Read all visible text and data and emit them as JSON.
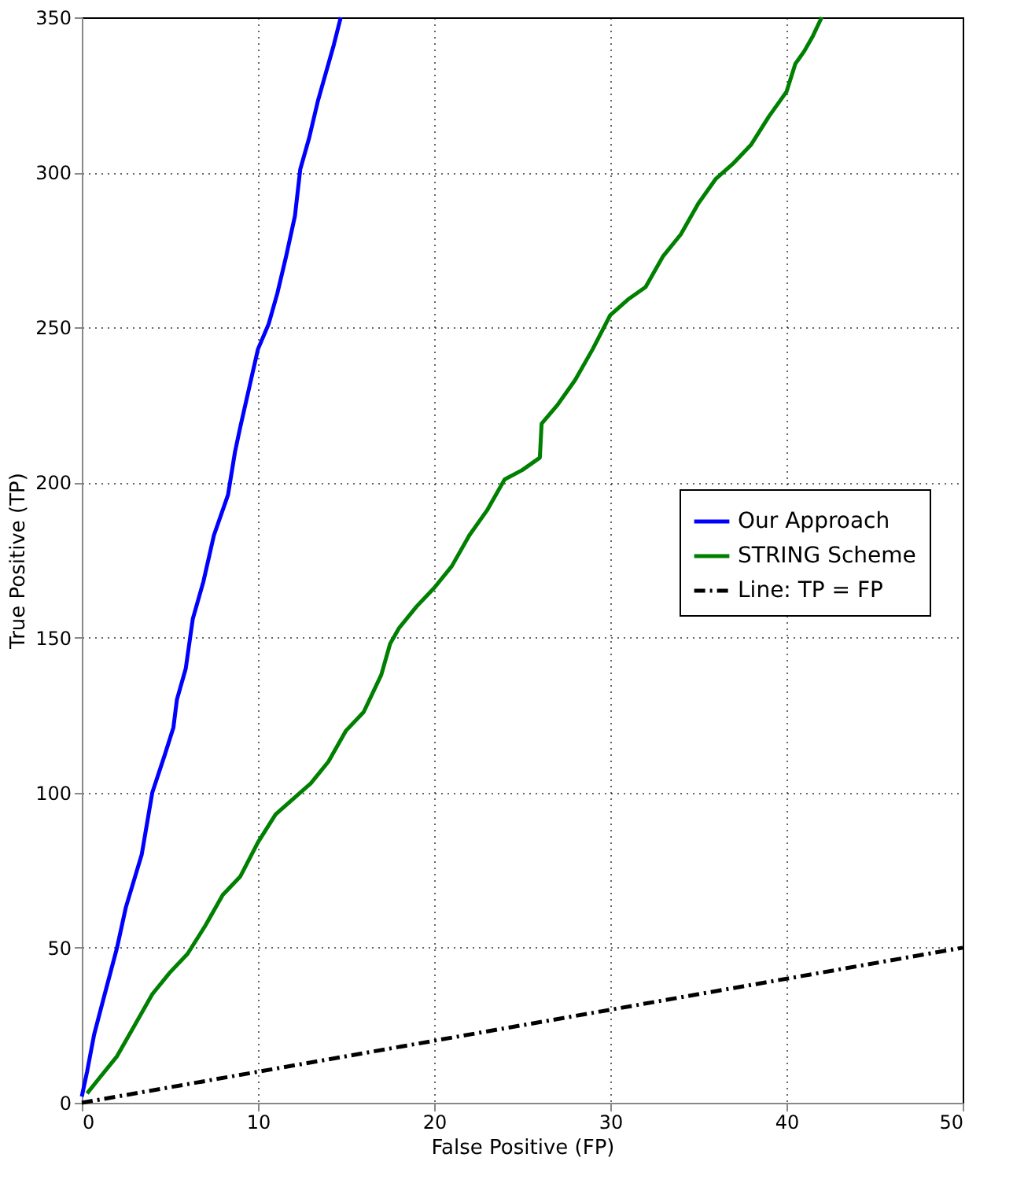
{
  "chart_data": {
    "type": "line",
    "xlabel": "False Positive (FP)",
    "ylabel": "True Positive (TP)",
    "xlim": [
      0,
      50
    ],
    "ylim": [
      0,
      350
    ],
    "xticks": [
      0,
      10,
      20,
      30,
      40,
      50
    ],
    "yticks": [
      0,
      50,
      100,
      150,
      200,
      250,
      300,
      350
    ],
    "grid": true,
    "legend": "right",
    "marker": "none",
    "series": [
      {
        "name": "Our Approach",
        "color": "#0000ff",
        "line_style": "solid",
        "x": [
          0,
          0.3,
          0.7,
          1.3,
          2,
          2.5,
          3.4,
          4,
          4.7,
          5.2,
          5.4,
          5.9,
          6.3,
          6.9,
          7.5,
          8.3,
          8.7,
          9,
          9.6,
          10,
          10.6,
          11.1,
          11.6,
          12.1,
          12.4,
          12.9,
          13.4,
          13.8,
          14.3,
          14.7
        ],
        "values": [
          2,
          10,
          22,
          35,
          50,
          63,
          80,
          100,
          112,
          121,
          130,
          140,
          156,
          168,
          183,
          196,
          210,
          218,
          233,
          243,
          251,
          261,
          273,
          286,
          301,
          311,
          323,
          331,
          341,
          350
        ]
      },
      {
        "name": "STRING Scheme",
        "color": "#008000",
        "line_style": "solid",
        "x": [
          0.3,
          1,
          2,
          3,
          4,
          5,
          6,
          7,
          8,
          9,
          10,
          11,
          12,
          13,
          14,
          15,
          16,
          17,
          17.5,
          18,
          19,
          20,
          21,
          22,
          23,
          24,
          25,
          26,
          26.1,
          27,
          28,
          29,
          30,
          31,
          32,
          33,
          34,
          35,
          36,
          37,
          38,
          39,
          40,
          40.5,
          41,
          41.5,
          42
        ],
        "values": [
          3,
          8,
          15,
          25,
          35,
          42,
          48,
          57,
          67,
          73,
          84,
          93,
          98,
          103,
          110,
          120,
          126,
          138,
          148,
          153,
          160,
          166,
          173,
          183,
          191,
          201,
          204,
          208,
          219,
          225,
          233,
          243,
          254,
          259,
          263,
          273,
          280,
          290,
          298,
          303,
          309,
          318,
          326,
          335,
          339,
          344,
          350
        ]
      },
      {
        "name": "Line: TP = FP",
        "color": "#000000",
        "line_style": "dashdot",
        "x": [
          0,
          50
        ],
        "values": [
          0,
          50
        ]
      }
    ]
  }
}
